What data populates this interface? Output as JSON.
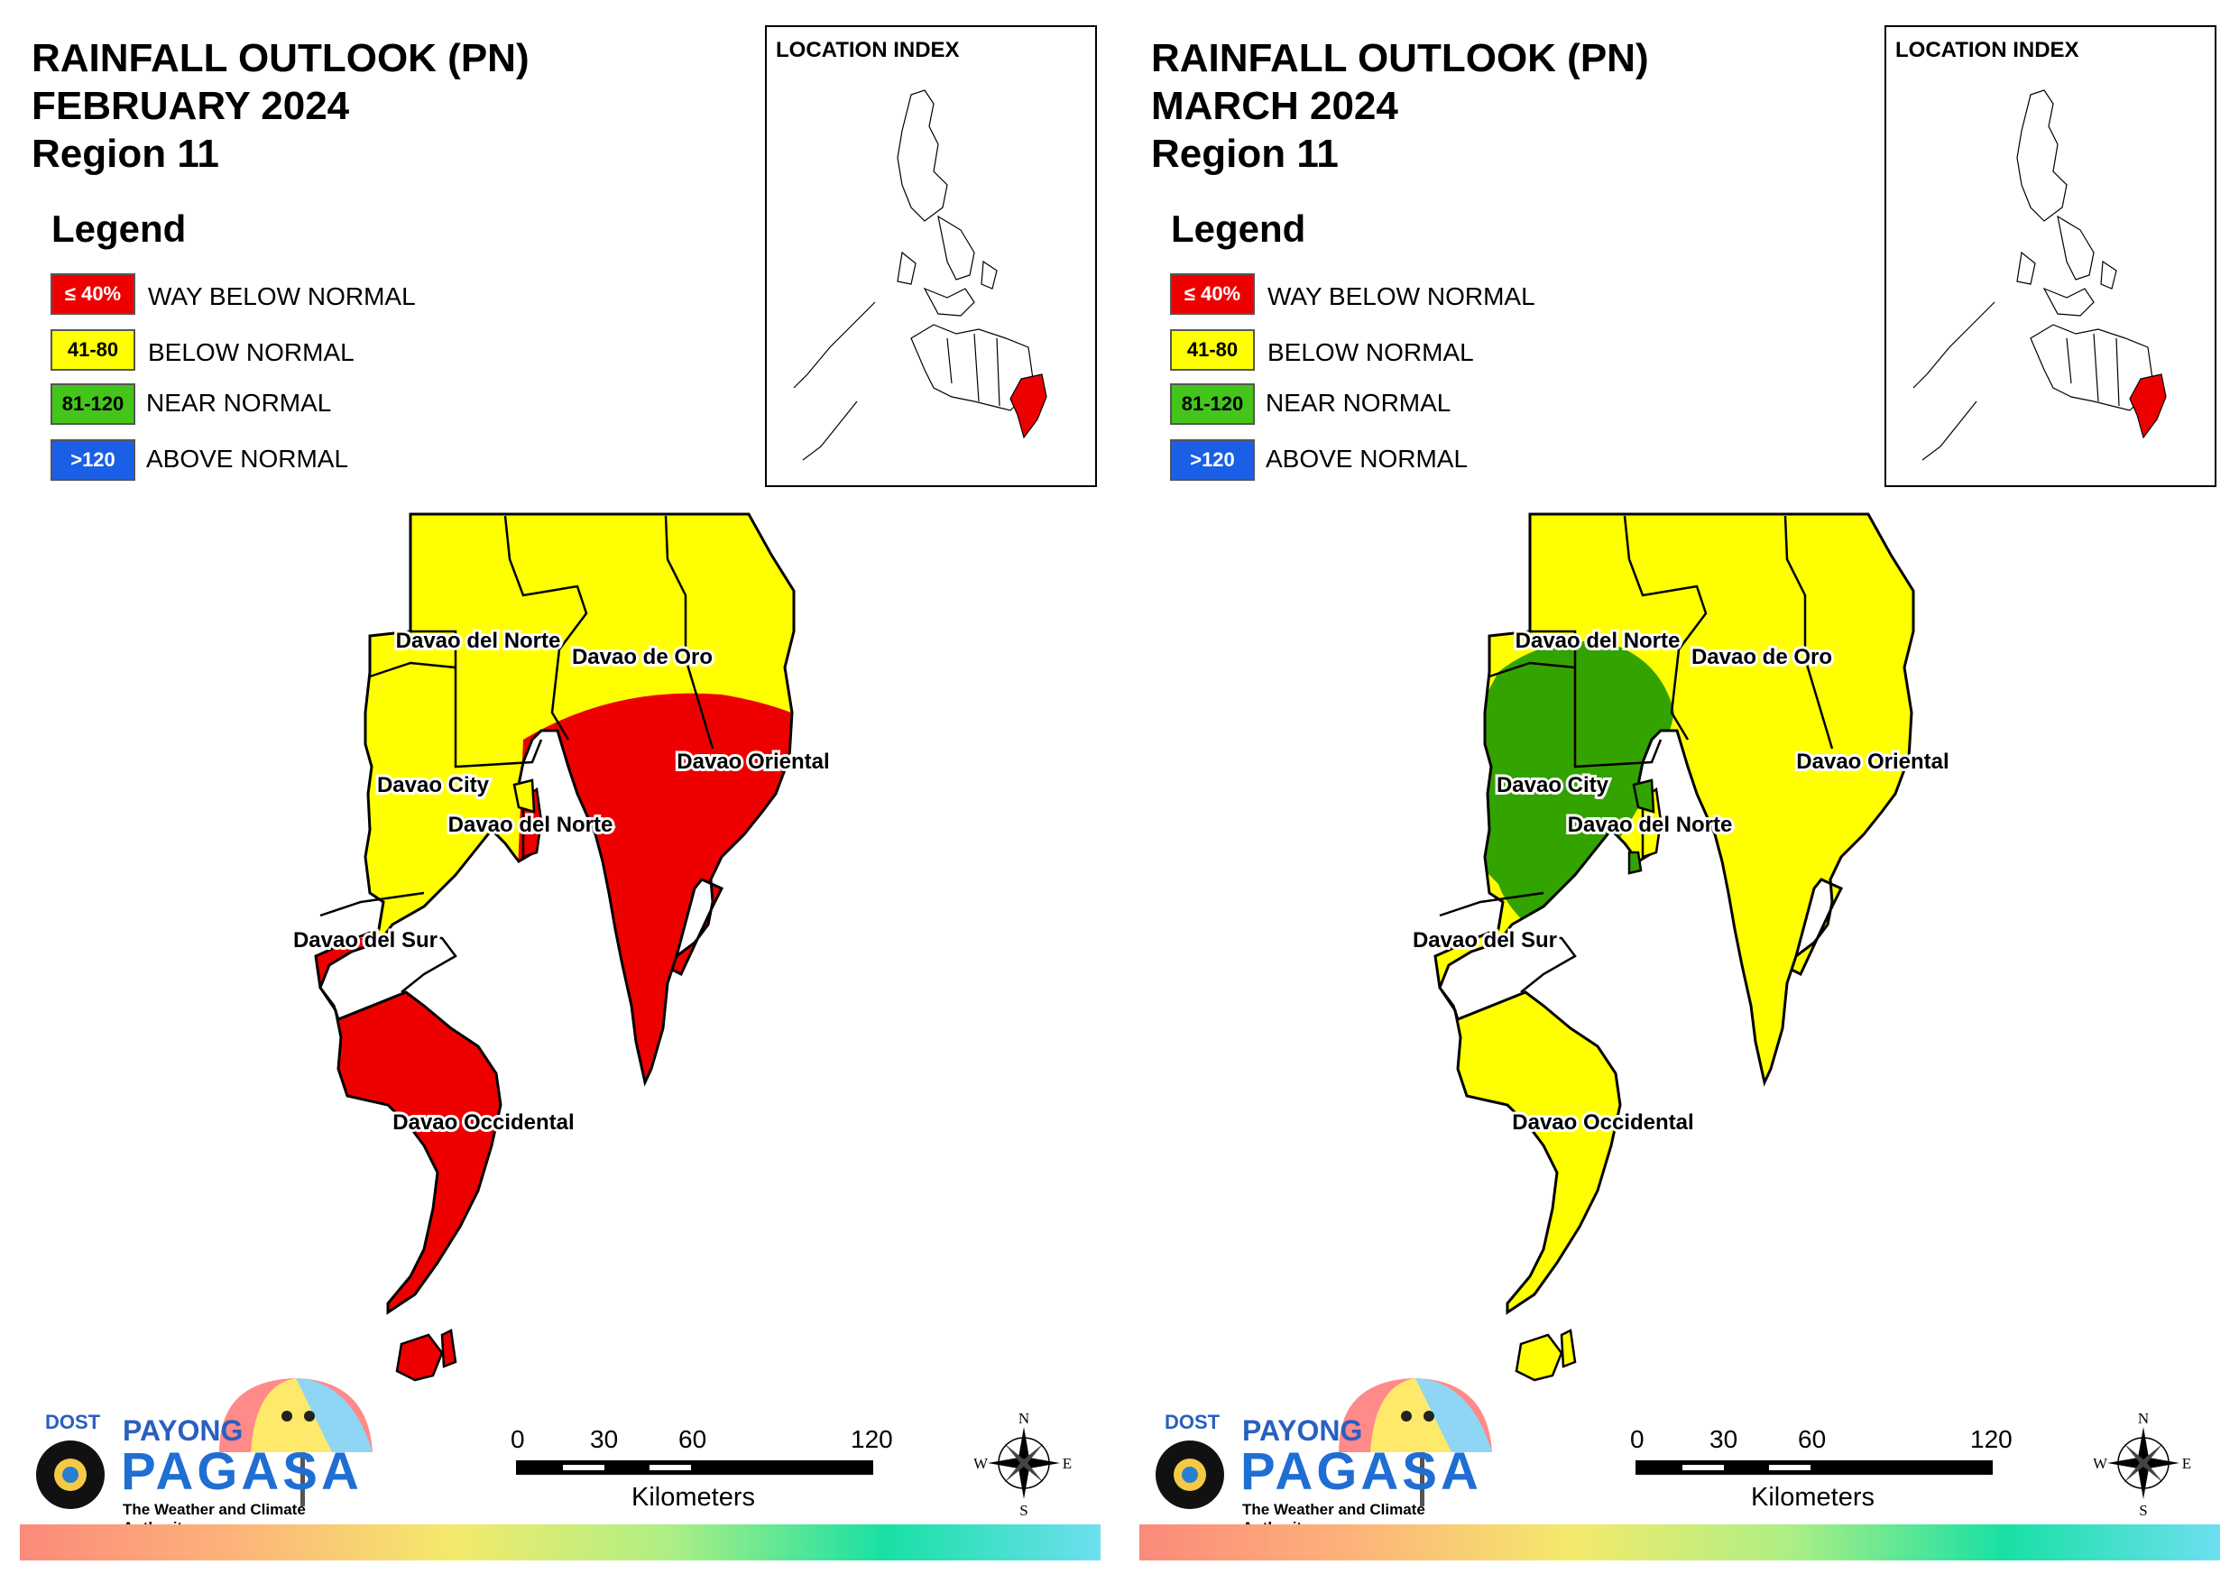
{
  "colors": {
    "way_below": "#ee0000",
    "below": "#ffff00",
    "near": "#33a300",
    "above": "#1a5fe6",
    "outline": "#000000"
  },
  "legend": {
    "heading": "Legend",
    "items": [
      {
        "box": "≤ 40%",
        "label": "WAY BELOW NORMAL"
      },
      {
        "box": "41-80",
        "label": "BELOW NORMAL"
      },
      {
        "box": "81-120",
        "label": "NEAR NORMAL"
      },
      {
        "box": ">120",
        "label": "ABOVE NORMAL"
      }
    ]
  },
  "inset": {
    "label": "LOCATION INDEX"
  },
  "scale": {
    "ticks": [
      "0",
      "30",
      "60",
      "120"
    ],
    "unit": "Kilometers"
  },
  "compass": {
    "n": "N",
    "s": "S",
    "e": "E",
    "w": "W"
  },
  "logo": {
    "agency": "DOST",
    "name1": "PAYONG",
    "name2": "PAGASA",
    "tagline": "The Weather and Climate Authority"
  },
  "panels": [
    {
      "title_line1": "RAINFALL OUTLOOK (PN)",
      "title_line2": "FEBRUARY 2024",
      "title_line3": "Region 11",
      "fills": {
        "north": "below",
        "overlay": "way_below",
        "south": "way_below",
        "west_band": "below"
      },
      "labels": [
        "Davao del Norte",
        "Davao de Oro",
        "Davao Oriental",
        "Davao City",
        "Davao del Norte",
        "Davao del Sur",
        "Davao Occidental"
      ]
    },
    {
      "title_line1": "RAINFALL OUTLOOK (PN)",
      "title_line2": "MARCH 2024",
      "title_line3": "Region 11",
      "fills": {
        "north": "below",
        "overlay": "near",
        "south": "below",
        "west_band": "below"
      },
      "labels": [
        "Davao del Norte",
        "Davao de Oro",
        "Davao Oriental",
        "Davao City",
        "Davao del Norte",
        "Davao del Sur",
        "Davao Occidental"
      ]
    }
  ]
}
